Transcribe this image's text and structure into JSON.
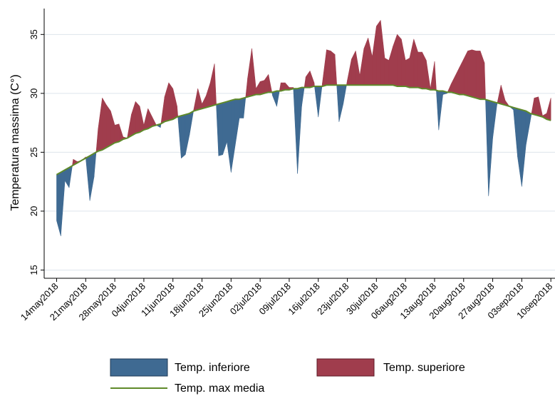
{
  "chart_data": {
    "type": "range-area",
    "ylabel": "Temperatura massima (C°)",
    "x": [
      "2018-05-14",
      "2018-05-15",
      "2018-05-16",
      "2018-05-17",
      "2018-05-18",
      "2018-05-19",
      "2018-05-20",
      "2018-05-21",
      "2018-05-22",
      "2018-05-23",
      "2018-05-24",
      "2018-05-25",
      "2018-05-26",
      "2018-05-27",
      "2018-05-28",
      "2018-05-29",
      "2018-05-30",
      "2018-05-31",
      "2018-06-01",
      "2018-06-02",
      "2018-06-03",
      "2018-06-04",
      "2018-06-05",
      "2018-06-06",
      "2018-06-07",
      "2018-06-08",
      "2018-06-09",
      "2018-06-10",
      "2018-06-11",
      "2018-06-12",
      "2018-06-13",
      "2018-06-14",
      "2018-06-15",
      "2018-06-16",
      "2018-06-17",
      "2018-06-18",
      "2018-06-19",
      "2018-06-20",
      "2018-06-21",
      "2018-06-22",
      "2018-06-23",
      "2018-06-24",
      "2018-06-25",
      "2018-06-26",
      "2018-06-27",
      "2018-06-28",
      "2018-06-29",
      "2018-06-30",
      "2018-07-01",
      "2018-07-02",
      "2018-07-03",
      "2018-07-04",
      "2018-07-05",
      "2018-07-06",
      "2018-07-07",
      "2018-07-08",
      "2018-07-09",
      "2018-07-10",
      "2018-07-11",
      "2018-07-12",
      "2018-07-13",
      "2018-07-14",
      "2018-07-15",
      "2018-07-16",
      "2018-07-17",
      "2018-07-18",
      "2018-07-19",
      "2018-07-20",
      "2018-07-21",
      "2018-07-22",
      "2018-07-23",
      "2018-07-24",
      "2018-07-25",
      "2018-07-26",
      "2018-07-27",
      "2018-07-28",
      "2018-07-29",
      "2018-07-30",
      "2018-07-31",
      "2018-08-01",
      "2018-08-02",
      "2018-08-03",
      "2018-08-04",
      "2018-08-05",
      "2018-08-06",
      "2018-08-07",
      "2018-08-08",
      "2018-08-09",
      "2018-08-10",
      "2018-08-11",
      "2018-08-12",
      "2018-08-13",
      "2018-08-14",
      "2018-08-15",
      "2018-08-16",
      "2018-08-17",
      "2018-08-18",
      "2018-08-19",
      "2018-08-20",
      "2018-08-21",
      "2018-08-22",
      "2018-08-23",
      "2018-08-24",
      "2018-08-25",
      "2018-08-26",
      "2018-08-27",
      "2018-08-28",
      "2018-08-29",
      "2018-08-30",
      "2018-08-31",
      "2018-09-01",
      "2018-09-02",
      "2018-09-03",
      "2018-09-04",
      "2018-09-05",
      "2018-09-06",
      "2018-09-07",
      "2018-09-08",
      "2018-09-09",
      "2018-09-10"
    ],
    "values": [
      19.2,
      17.9,
      22.6,
      22.0,
      24.4,
      24.2,
      24.3,
      24.6,
      20.9,
      22.9,
      27.0,
      29.6,
      29.0,
      28.5,
      27.3,
      27.4,
      26.3,
      26.2,
      28.2,
      29.3,
      28.9,
      27.3,
      28.7,
      28.0,
      27.3,
      27.1,
      29.7,
      30.9,
      30.4,
      28.9,
      24.5,
      24.8,
      26.5,
      28.6,
      30.4,
      29.1,
      29.8,
      30.9,
      32.5,
      24.7,
      24.8,
      25.9,
      23.3,
      25.6,
      27.9,
      27.9,
      31.3,
      33.8,
      30.4,
      31.0,
      31.1,
      31.6,
      29.8,
      28.9,
      30.9,
      30.9,
      30.5,
      30.5,
      23.2,
      28.9,
      31.4,
      31.9,
      30.9,
      28.0,
      30.9,
      33.7,
      33.6,
      33.3,
      27.6,
      29.1,
      31.1,
      32.9,
      33.6,
      31.5,
      33.8,
      34.7,
      33.1,
      35.7,
      36.2,
      33.0,
      32.8,
      34.0,
      35.0,
      34.6,
      32.8,
      33.0,
      34.6,
      33.5,
      33.5,
      32.8,
      30.4,
      32.7,
      26.9,
      29.9,
      30.0,
      30.8,
      31.5,
      32.2,
      32.9,
      33.6,
      33.7,
      33.6,
      33.6,
      32.6,
      21.3,
      26.2,
      29.0,
      30.7,
      29.4,
      28.9,
      28.6,
      24.6,
      22.1,
      25.6,
      27.6,
      29.6,
      29.7,
      28.1,
      28.3,
      29.6
    ],
    "baseline": {
      "name": "Temp. max media",
      "color": "#5f8a2a",
      "values": [
        23.1,
        23.3,
        23.5,
        23.7,
        23.9,
        24.1,
        24.3,
        24.5,
        24.7,
        24.9,
        25.1,
        25.2,
        25.4,
        25.6,
        25.8,
        25.9,
        26.1,
        26.2,
        26.4,
        26.6,
        26.7,
        26.9,
        27.0,
        27.2,
        27.3,
        27.4,
        27.6,
        27.7,
        27.8,
        28.0,
        28.1,
        28.2,
        28.3,
        28.5,
        28.6,
        28.7,
        28.8,
        28.9,
        29.0,
        29.1,
        29.2,
        29.3,
        29.4,
        29.5,
        29.5,
        29.6,
        29.7,
        29.8,
        29.9,
        29.9,
        30.0,
        30.1,
        30.1,
        30.2,
        30.2,
        30.3,
        30.3,
        30.4,
        30.4,
        30.5,
        30.5,
        30.5,
        30.6,
        30.6,
        30.6,
        30.7,
        30.7,
        30.7,
        30.7,
        30.7,
        30.7,
        30.7,
        30.7,
        30.7,
        30.7,
        30.7,
        30.7,
        30.7,
        30.7,
        30.7,
        30.7,
        30.7,
        30.6,
        30.6,
        30.6,
        30.5,
        30.5,
        30.5,
        30.4,
        30.4,
        30.3,
        30.3,
        30.2,
        30.2,
        30.1,
        30.1,
        30.0,
        29.9,
        29.9,
        29.8,
        29.7,
        29.6,
        29.5,
        29.5,
        29.4,
        29.3,
        29.2,
        29.1,
        29.0,
        28.9,
        28.8,
        28.7,
        28.6,
        28.5,
        28.3,
        28.2,
        28.1,
        28.0,
        27.8,
        27.7
      ]
    },
    "below": {
      "name": "Temp. inferiore",
      "color": "#3f6a92"
    },
    "above": {
      "name": "Temp. superiore",
      "color": "#a03d4d"
    },
    "xlim": [
      "2018-05-11",
      "2018-09-11"
    ],
    "ylim": [
      14.3,
      37.2
    ],
    "yticks": [
      15,
      20,
      25,
      30,
      35
    ],
    "xticks": [
      {
        "value": "2018-05-14",
        "label": "14may2018"
      },
      {
        "value": "2018-05-21",
        "label": "21may2018"
      },
      {
        "value": "2018-05-28",
        "label": "28may2018"
      },
      {
        "value": "2018-06-04",
        "label": "04jun2018"
      },
      {
        "value": "2018-06-11",
        "label": "11jun2018"
      },
      {
        "value": "2018-06-18",
        "label": "18jun2018"
      },
      {
        "value": "2018-06-25",
        "label": "25jun2018"
      },
      {
        "value": "2018-07-02",
        "label": "02jul2018"
      },
      {
        "value": "2018-07-09",
        "label": "09jul2018"
      },
      {
        "value": "2018-07-16",
        "label": "16jul2018"
      },
      {
        "value": "2018-07-23",
        "label": "23jul2018"
      },
      {
        "value": "2018-07-30",
        "label": "30jul2018"
      },
      {
        "value": "2018-08-06",
        "label": "06aug2018"
      },
      {
        "value": "2018-08-13",
        "label": "13aug2018"
      },
      {
        "value": "2018-08-20",
        "label": "20aug2018"
      },
      {
        "value": "2018-08-27",
        "label": "27aug2018"
      },
      {
        "value": "2018-09-03",
        "label": "03sep2018"
      },
      {
        "value": "2018-09-10",
        "label": "10sep2018"
      }
    ],
    "grid": true,
    "legend": "bottom"
  }
}
